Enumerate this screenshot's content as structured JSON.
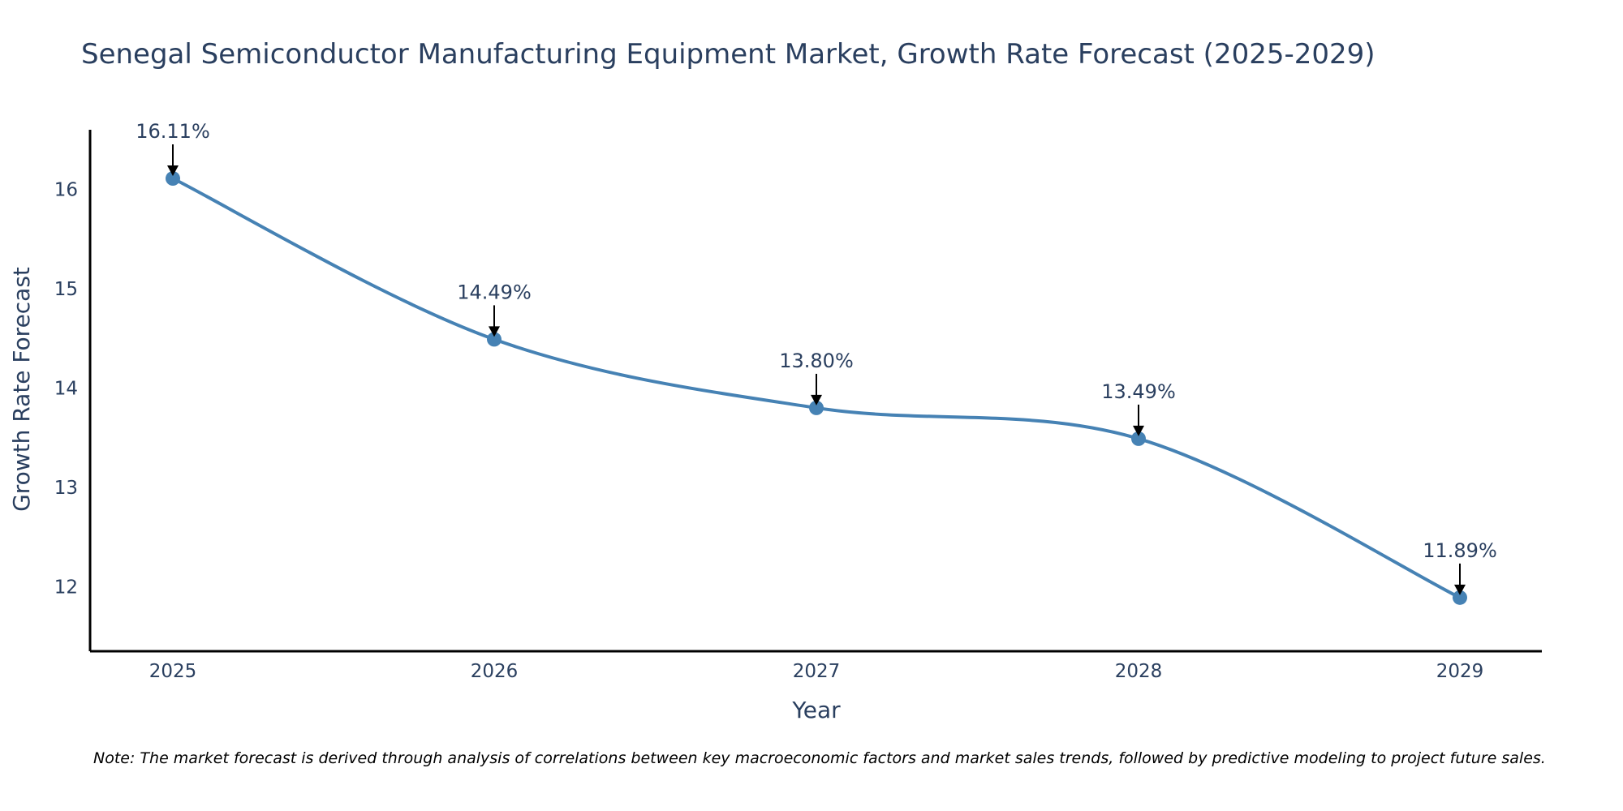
{
  "chart_data": {
    "type": "line",
    "title": "Senegal Semiconductor Manufacturing Equipment Market, Growth Rate Forecast (2025-2029)",
    "xlabel": "Year",
    "ylabel": "Growth Rate Forecast",
    "categories": [
      "2025",
      "2026",
      "2027",
      "2028",
      "2029"
    ],
    "values": [
      16.11,
      14.49,
      13.8,
      13.49,
      11.89
    ],
    "data_labels": [
      "16.11%",
      "14.49%",
      "13.80%",
      "13.49%",
      "11.89%"
    ],
    "y_ticks": [
      12,
      13,
      14,
      15,
      16
    ],
    "ylim": [
      11.35,
      16.6
    ],
    "grid": false,
    "line_color": "#4682b4",
    "marker_color": "#4682b4",
    "arrow_color": "#000000",
    "axis_color": "#000000"
  },
  "note": "Note: The market forecast is derived through analysis of correlations between key macroeconomic factors and market sales trends, followed by predictive modeling to project future sales."
}
